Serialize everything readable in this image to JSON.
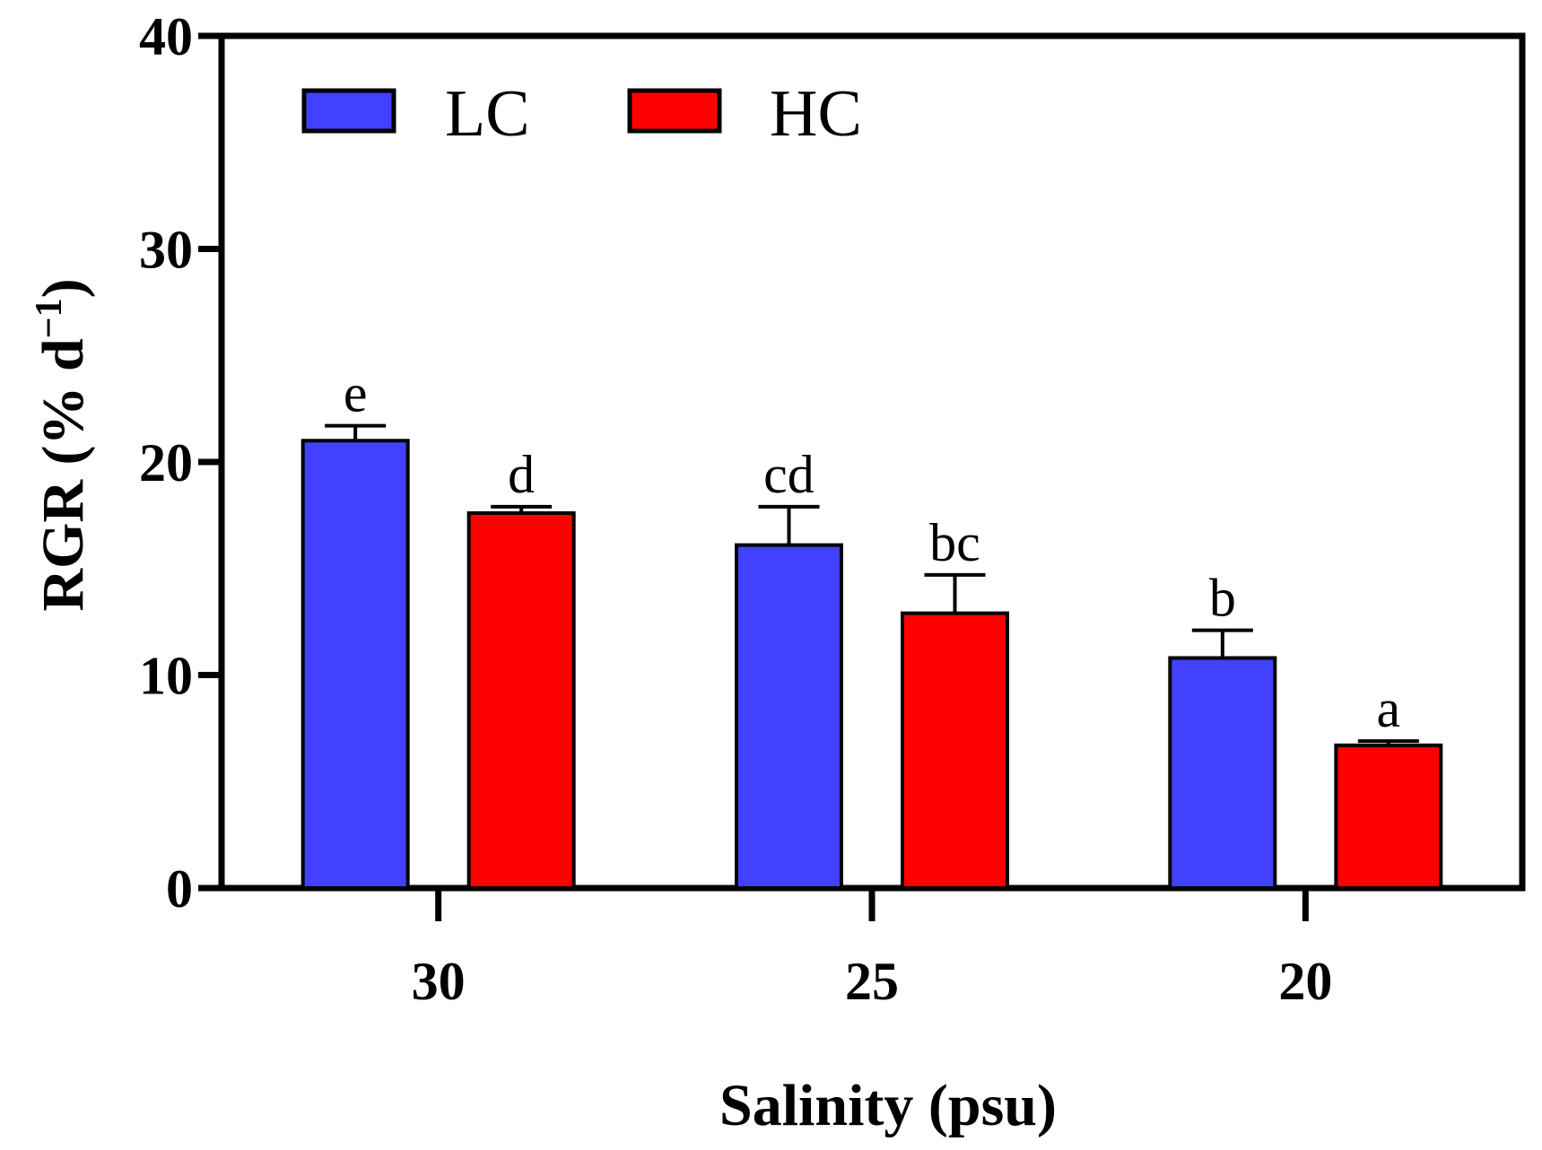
{
  "chart_data": {
    "type": "bar",
    "categories": [
      "30",
      "25",
      "20"
    ],
    "series": [
      {
        "name": "LC",
        "color": "#4141ff",
        "values": [
          21.0,
          16.1,
          10.8
        ],
        "errors": [
          0.7,
          1.8,
          1.3
        ],
        "labels": [
          "e",
          "cd",
          "b"
        ]
      },
      {
        "name": "HC",
        "color": "#ff0000",
        "values": [
          17.6,
          12.9,
          6.7
        ],
        "errors": [
          0.3,
          1.8,
          0.2
        ],
        "labels": [
          "d",
          "bc",
          "a"
        ]
      }
    ],
    "xlabel": "Salinity (psu)",
    "ylabel_main": "RGR (% d",
    "ylabel_sup": "−1",
    "ylabel_close": ")",
    "ylim": [
      0,
      40
    ],
    "yticks": [
      "0",
      "10",
      "20",
      "30",
      "40"
    ],
    "legend_position": "top-left"
  }
}
